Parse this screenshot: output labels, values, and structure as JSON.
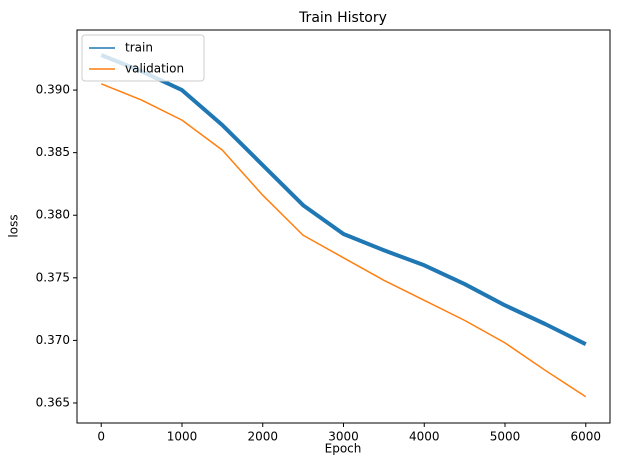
{
  "chart_data": {
    "type": "line",
    "title": "Train History",
    "x_label": "Epoch",
    "y_label": "loss",
    "x": [
      0,
      500,
      1000,
      1500,
      2000,
      2500,
      3000,
      3500,
      4000,
      4500,
      5000,
      5500,
      6000
    ],
    "series": [
      {
        "name": "train",
        "color": "#1f77b4",
        "values": [
          0.3928,
          0.3915,
          0.39,
          0.3872,
          0.384,
          0.3808,
          0.3785,
          0.3772,
          0.376,
          0.3745,
          0.3728,
          0.3713,
          0.3697
        ]
      },
      {
        "name": "validation",
        "color": "#ff7f0e",
        "values": [
          0.3905,
          0.3892,
          0.3876,
          0.3852,
          0.3816,
          0.3784,
          0.3766,
          0.3748,
          0.3732,
          0.3716,
          0.3698,
          0.3676,
          0.3655
        ]
      }
    ],
    "xlim": [
      -300,
      6300
    ],
    "ylim": [
      0.3634,
      0.3948
    ],
    "xticks": [
      0,
      1000,
      2000,
      3000,
      4000,
      5000,
      6000
    ],
    "yticks": [
      0.365,
      {
        "value": 0.37,
        "label": "0.370"
      },
      0.375,
      {
        "value": 0.38,
        "label": "0.380"
      },
      0.385,
      {
        "value": 0.39,
        "label": "0.390"
      }
    ],
    "legend": "upper left"
  }
}
